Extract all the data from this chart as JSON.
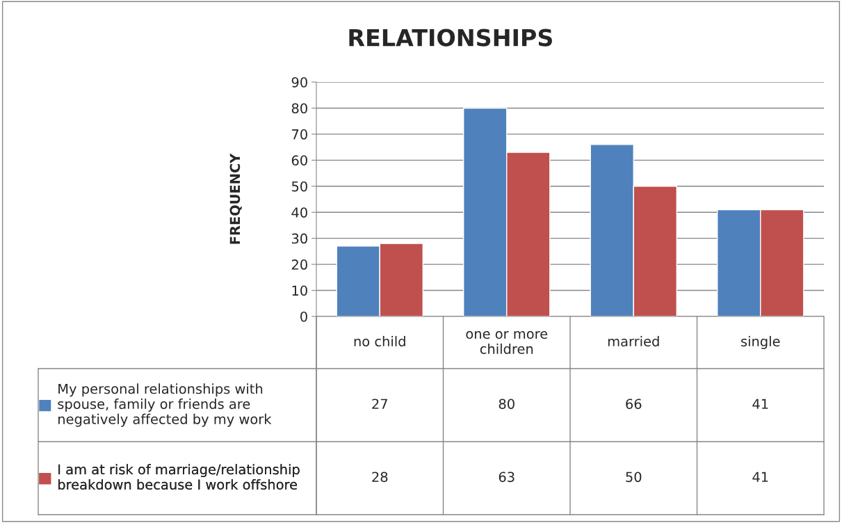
{
  "chart_data": {
    "type": "bar",
    "title": "RELATIONSHIPS",
    "ylabel": "FREQUENCY",
    "categories": [
      "no child",
      "one or more children",
      "married",
      "single"
    ],
    "series": [
      {
        "name": "My personal relationships with spouse, family or friends are negatively affected by my work",
        "color": "#4f81bd",
        "values": [
          27,
          80,
          66,
          41
        ]
      },
      {
        "name": "I am at risk of marriage/relationship breakdown because I work offshore",
        "color": "#c0504d",
        "values": [
          28,
          63,
          50,
          41
        ]
      }
    ],
    "ylim": [
      0,
      90
    ],
    "yticks": [
      0,
      10,
      20,
      30,
      40,
      50,
      60,
      70,
      80,
      90
    ],
    "grid": "y",
    "data_labels": true,
    "legend": "bottom left"
  }
}
